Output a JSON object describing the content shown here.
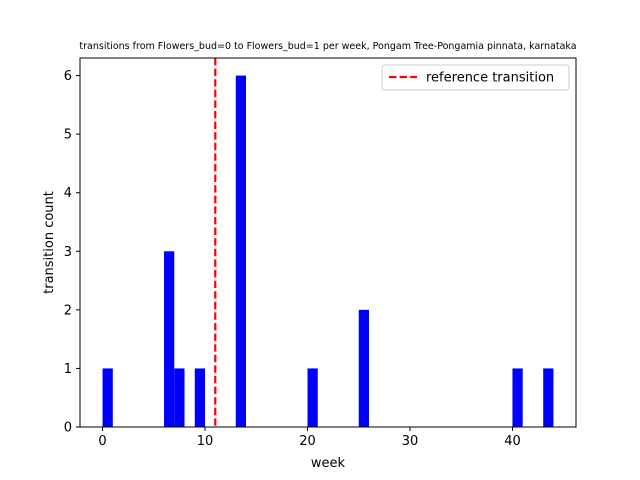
{
  "chart_data": {
    "type": "bar",
    "title": "transitions from Flowers_bud=0 to Flowers_bud=1 per week, Pongam Tree-Pongamia pinnata, karnataka",
    "xlabel": "week",
    "ylabel": "transition count",
    "xlim": [
      -2.2,
      46.2
    ],
    "ylim": [
      0,
      6.3
    ],
    "xticks": [
      0,
      10,
      20,
      30,
      40
    ],
    "yticks": [
      0,
      1,
      2,
      3,
      4,
      5,
      6
    ],
    "bar_color": "#0000ff",
    "bar_width": 1,
    "bars": [
      {
        "week": 0,
        "count": 1
      },
      {
        "week": 6,
        "count": 3
      },
      {
        "week": 7,
        "count": 1
      },
      {
        "week": 9,
        "count": 1
      },
      {
        "week": 13,
        "count": 6
      },
      {
        "week": 20,
        "count": 1
      },
      {
        "week": 25,
        "count": 2
      },
      {
        "week": 40,
        "count": 1
      },
      {
        "week": 43,
        "count": 1
      }
    ],
    "reference_line": {
      "x": 11,
      "label": "reference transition",
      "color": "#ff0000",
      "style": "dashed"
    },
    "legend": {
      "position": "top-right",
      "entries": [
        "reference transition"
      ]
    },
    "grid": false
  }
}
